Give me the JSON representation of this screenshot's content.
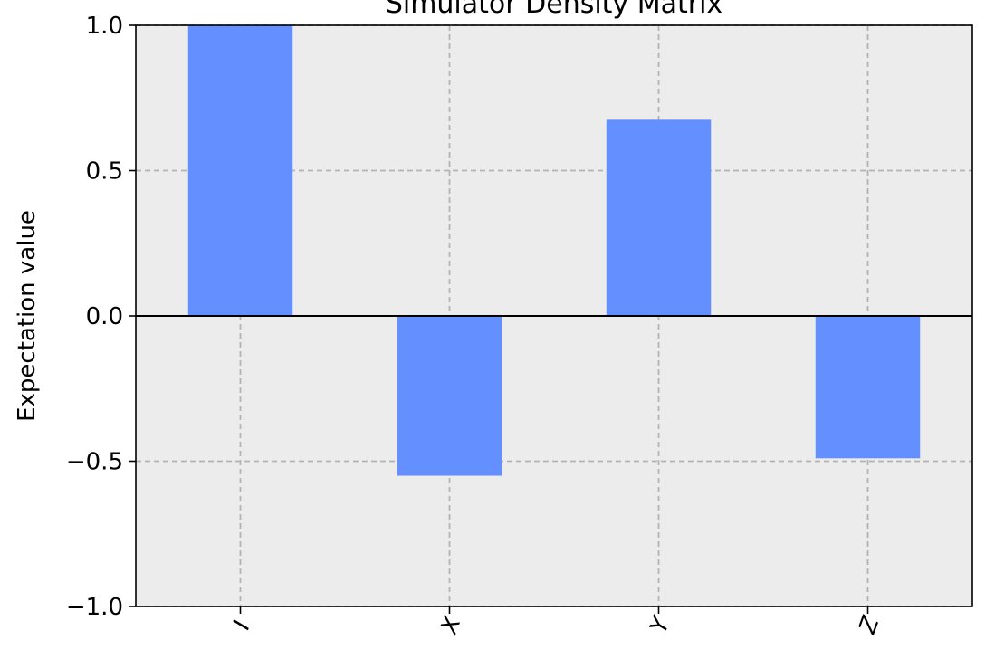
{
  "chart_data": {
    "type": "bar",
    "title": "Simulator Density Matrix",
    "xlabel": "",
    "ylabel": "Expectation value",
    "categories": [
      "I",
      "X",
      "Y",
      "Z"
    ],
    "values": [
      1.0,
      -0.55,
      0.675,
      -0.49
    ],
    "ylim": [
      -1.0,
      1.0
    ],
    "yticks": [
      "1.0",
      "0.5",
      "0.0",
      "−0.5",
      "−1.0"
    ],
    "ytick_values": [
      1.0,
      0.5,
      0.0,
      -0.5,
      -1.0
    ],
    "grid": true,
    "grid_style": "dashed",
    "bar_color": "#648fff",
    "plot_background": "#ececec",
    "zero_line": true
  }
}
